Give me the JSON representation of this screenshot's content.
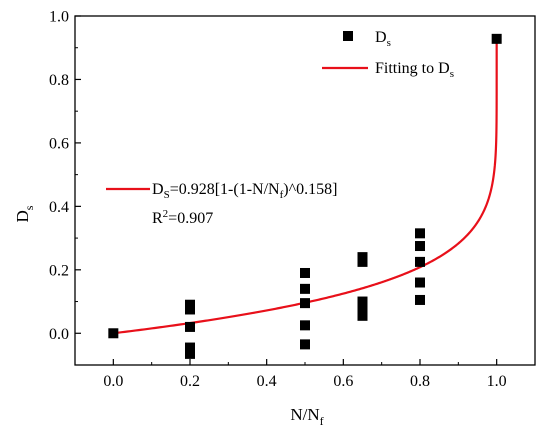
{
  "colors": {
    "fit": "#e8101a",
    "markers": "#000000",
    "axes": "#000000"
  },
  "chart_data": {
    "type": "scatter",
    "xlabel": {
      "main": "N/N",
      "sub": "f"
    },
    "ylabel": {
      "main": "D",
      "sub": "s"
    },
    "xlim": [
      -0.1,
      1.1
    ],
    "ylim": [
      -0.1,
      1.0
    ],
    "xticks": [
      {
        "value": 0.0,
        "label": "0.0"
      },
      {
        "value": 0.2,
        "label": "0.2"
      },
      {
        "value": 0.4,
        "label": "0.4"
      },
      {
        "value": 0.6,
        "label": "0.6"
      },
      {
        "value": 0.8,
        "label": "0.8"
      },
      {
        "value": 1.0,
        "label": "1.0"
      }
    ],
    "yticks": [
      {
        "value": 0.0,
        "label": "0.0"
      },
      {
        "value": 0.2,
        "label": "0.2"
      },
      {
        "value": 0.4,
        "label": "0.4"
      },
      {
        "value": 0.6,
        "label": "0.6"
      },
      {
        "value": 0.8,
        "label": "0.8"
      },
      {
        "value": 1.0,
        "label": "1.0"
      }
    ],
    "grid": false,
    "legend_position": "top-right",
    "series": [
      {
        "name": "Ds",
        "legend_main": "D",
        "legend_sub": "s",
        "kind": "scatter",
        "marker": "square",
        "points": [
          [
            0.0,
            0.0
          ],
          [
            0.2,
            0.09
          ],
          [
            0.2,
            0.075
          ],
          [
            0.2,
            0.02
          ],
          [
            0.2,
            -0.045
          ],
          [
            0.2,
            -0.065
          ],
          [
            0.5,
            0.19
          ],
          [
            0.5,
            0.14
          ],
          [
            0.5,
            0.095
          ],
          [
            0.5,
            0.025
          ],
          [
            0.5,
            -0.035
          ],
          [
            0.65,
            0.24
          ],
          [
            0.65,
            0.225
          ],
          [
            0.65,
            0.1
          ],
          [
            0.65,
            0.085
          ],
          [
            0.65,
            0.065
          ],
          [
            0.65,
            0.055
          ],
          [
            0.8,
            0.315
          ],
          [
            0.8,
            0.275
          ],
          [
            0.8,
            0.225
          ],
          [
            0.8,
            0.16
          ],
          [
            0.8,
            0.105
          ],
          [
            1.0,
            0.928
          ]
        ]
      },
      {
        "name": "Fitting to Ds",
        "legend_main": "Fitting to D",
        "legend_sub": "s",
        "kind": "line",
        "equation": {
          "a": 0.928,
          "b": 0.158
        }
      }
    ],
    "annotation": {
      "eq_prefix": "D",
      "eq_sub_s": "S",
      "eq_mid": "=0.928[1-(1-N/N",
      "eq_sub_f": "f",
      "eq_suffix": ")^0.158]",
      "r2_prefix": "R",
      "r2_sup": "2",
      "r2_suffix": "=0.907"
    }
  }
}
